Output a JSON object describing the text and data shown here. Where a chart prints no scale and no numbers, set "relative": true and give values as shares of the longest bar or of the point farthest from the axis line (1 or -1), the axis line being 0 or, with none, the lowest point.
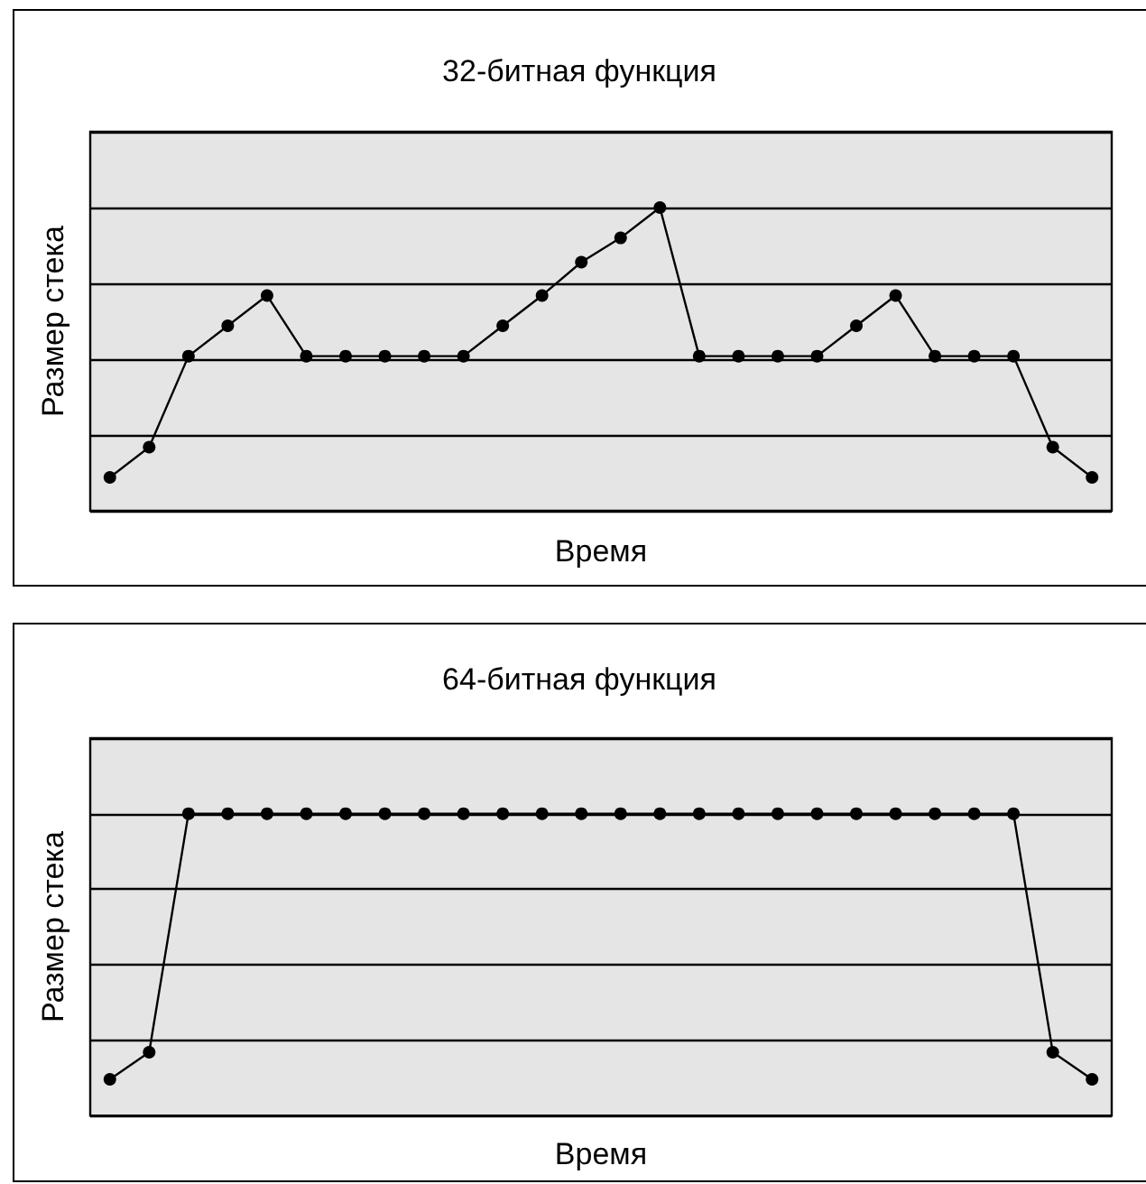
{
  "chart_data": [
    {
      "type": "line",
      "title": "32-битная функция",
      "xlabel": "Время",
      "ylabel": "Размер стека",
      "relative": true,
      "grid": "y",
      "marker": "circle",
      "line_style": "solid",
      "categories": [
        null,
        null,
        null,
        null,
        null,
        null,
        null,
        null,
        null,
        null,
        null,
        null,
        null,
        null,
        null,
        null,
        null,
        null,
        null,
        null,
        null,
        null,
        null,
        null,
        null,
        null
      ],
      "series": [
        {
          "color": "#000000",
          "values": [
            0.11,
            0.21,
            0.51,
            0.61,
            0.71,
            0.51,
            0.51,
            0.51,
            0.51,
            0.51,
            0.61,
            0.71,
            0.82,
            0.9,
            1,
            0.51,
            0.51,
            0.51,
            0.51,
            0.61,
            0.71,
            0.51,
            0.51,
            0.51,
            0.21,
            0.11
          ]
        }
      ]
    },
    {
      "type": "line",
      "title": "64-битная функция",
      "xlabel": "Время",
      "ylabel": "Размер стека",
      "relative": true,
      "grid": "y",
      "marker": "circle",
      "line_style": "solid",
      "categories": [
        null,
        null,
        null,
        null,
        null,
        null,
        null,
        null,
        null,
        null,
        null,
        null,
        null,
        null,
        null,
        null,
        null,
        null,
        null,
        null,
        null,
        null,
        null,
        null,
        null,
        null
      ],
      "series": [
        {
          "color": "#000000",
          "values": [
            0.12,
            0.21,
            1,
            1,
            1,
            1,
            1,
            1,
            1,
            1,
            1,
            1,
            1,
            1,
            1,
            1,
            1,
            1,
            1,
            1,
            1,
            1,
            1,
            1,
            0.21,
            0.12
          ]
        }
      ]
    }
  ]
}
